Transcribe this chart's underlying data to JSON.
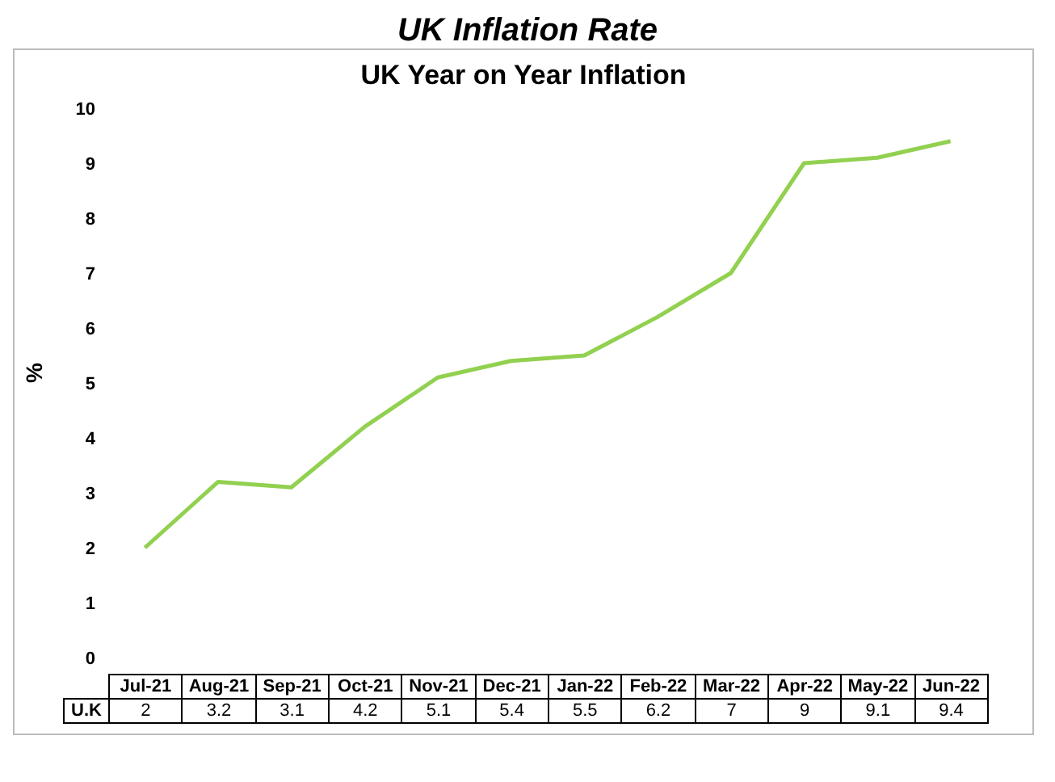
{
  "chart_data": {
    "type": "line",
    "title": "UK Inflation Rate",
    "subtitle": "UK Year on Year Inflation",
    "ylabel": "%",
    "categories": [
      "Jul-21",
      "Aug-21",
      "Sep-21",
      "Oct-21",
      "Nov-21",
      "Dec-21",
      "Jan-22",
      "Feb-22",
      "Mar-22",
      "Apr-22",
      "May-22",
      "Jun-22"
    ],
    "series": [
      {
        "name": "U.K",
        "color": "#92d050",
        "values": [
          2,
          3.2,
          3.1,
          4.2,
          5.1,
          5.4,
          5.5,
          6.2,
          7,
          9,
          9.1,
          9.4
        ]
      }
    ],
    "ylim": [
      0,
      10
    ],
    "yticks": [
      0,
      1,
      2,
      3,
      4,
      5,
      6,
      7,
      8,
      9,
      10
    ],
    "grid": false,
    "marker": "none",
    "line_style": "solid",
    "data_labels": true
  }
}
